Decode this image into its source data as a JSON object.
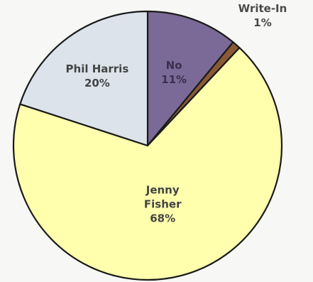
{
  "chart_data": {
    "type": "pie",
    "title": "",
    "start_angle_deg": 0,
    "direction": "clockwise",
    "slices": [
      {
        "label_lines": [
          "No",
          "11%"
        ],
        "value": 11,
        "color": "#7b6a98",
        "label_color": "#3a2f4e"
      },
      {
        "label_lines": [
          "Write-In",
          "1%"
        ],
        "value": 1,
        "color": "#8a5a35",
        "label_color": "#4a4a4a",
        "label_outside": true
      },
      {
        "label_lines": [
          "Jenny",
          "Fisher",
          "68%"
        ],
        "value": 68,
        "color": "#ffffad",
        "label_color": "#444444"
      },
      {
        "label_lines": [
          "Phil Harris",
          "20%"
        ],
        "value": 20,
        "color": "#dce3ea",
        "label_color": "#444444"
      }
    ]
  }
}
